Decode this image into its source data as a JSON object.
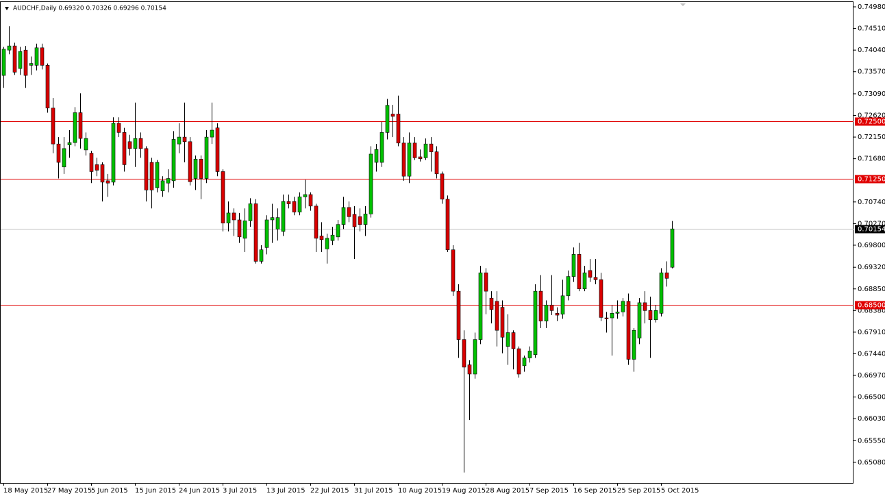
{
  "chart_data": {
    "type": "candlestick",
    "title": "AUDCHF,Daily  0.69320 0.70326 0.69296 0.70154",
    "categories": [
      "18 May 2015",
      null,
      null,
      null,
      null,
      null,
      null,
      null,
      "27 May 2015",
      null,
      null,
      null,
      null,
      null,
      null,
      null,
      "5 Jun 2015",
      null,
      null,
      null,
      null,
      null,
      null,
      null,
      "15 Jun 2015",
      null,
      null,
      null,
      null,
      null,
      null,
      null,
      "24 Jun 2015",
      null,
      null,
      null,
      null,
      null,
      null,
      null,
      "3 Jul 2015",
      null,
      null,
      null,
      null,
      null,
      null,
      null,
      "13 Jul 2015",
      null,
      null,
      null,
      null,
      null,
      null,
      null,
      "22 Jul 2015",
      null,
      null,
      null,
      null,
      null,
      null,
      null,
      "31 Jul 2015",
      null,
      null,
      null,
      null,
      null,
      null,
      null,
      "10 Aug 2015",
      null,
      null,
      null,
      null,
      null,
      null,
      null,
      "19 Aug 2015",
      null,
      null,
      null,
      null,
      null,
      null,
      null,
      "28 Aug 2015",
      null,
      null,
      null,
      null,
      null,
      null,
      null,
      "7 Sep 2015",
      null,
      null,
      null,
      null,
      null,
      null,
      null,
      "16 Sep 2015",
      null,
      null,
      null,
      null,
      null,
      null,
      null,
      "25 Sep 2015",
      null,
      null,
      null,
      null,
      null,
      null,
      null,
      "5 Oct 2015",
      null,
      null
    ],
    "open": [
      0.7349,
      0.7404,
      0.7413,
      0.7364,
      0.7404,
      0.7371,
      0.7371,
      0.7409,
      0.7371,
      0.7278,
      0.72,
      0.715,
      0.7198,
      0.7203,
      0.7268,
      0.7187,
      0.718,
      0.7155,
      0.7155,
      0.712,
      0.7117,
      0.7245,
      0.7225,
      0.7205,
      0.719,
      0.7212,
      0.719,
      0.716,
      0.7105,
      0.7098,
      0.7115,
      0.712,
      0.72,
      0.7215,
      0.7205,
      0.7125,
      0.7167,
      0.7125,
      0.7215,
      0.7235,
      0.714,
      0.7028,
      0.705,
      0.7035,
      0.6995,
      0.7033,
      0.707,
      0.6945,
      0.6975,
      0.7035,
      0.7015,
      0.701,
      0.7075,
      0.7075,
      0.7052,
      0.7085,
      0.709,
      0.7065,
      0.7,
      0.6972,
      0.699,
      0.6998,
      0.7025,
      0.7062,
      0.7047,
      0.7042,
      0.7025,
      0.7048,
      0.716,
      0.716,
      0.7225,
      0.7265,
      0.7265,
      0.7202,
      0.713,
      0.7202,
      0.7172,
      0.717,
      0.72,
      0.7183,
      0.7135,
      0.708,
      0.697,
      0.688,
      0.6775,
      0.672,
      0.67,
      0.6775,
      0.692,
      0.6865,
      0.6858,
      0.6845,
      0.676,
      0.679,
      0.6755,
      0.6718,
      0.6735,
      0.6742,
      0.688,
      0.6815,
      0.685,
      0.6832,
      0.683,
      0.687,
      0.6912,
      0.696,
      0.6885,
      0.6925,
      0.691,
      0.6905,
      0.6822,
      0.6822,
      0.6832,
      0.6835,
      0.6858,
      0.6732,
      0.6778,
      0.6855,
      0.6838,
      0.6818,
      0.6832,
      0.692,
      0.6932
    ],
    "high": [
      0.7411,
      0.7456,
      0.742,
      0.7411,
      0.7413,
      0.739,
      0.7418,
      0.7418,
      0.7375,
      0.73,
      0.7215,
      0.7215,
      0.723,
      0.728,
      0.731,
      0.7225,
      0.7185,
      0.717,
      0.716,
      0.7135,
      0.7258,
      0.7258,
      0.7235,
      0.722,
      0.729,
      0.7225,
      0.7195,
      0.717,
      0.7165,
      0.713,
      0.7145,
      0.7228,
      0.7245,
      0.729,
      0.7215,
      0.7175,
      0.7175,
      0.723,
      0.729,
      0.7245,
      0.7145,
      0.7075,
      0.706,
      0.705,
      0.706,
      0.7082,
      0.708,
      0.698,
      0.7045,
      0.707,
      0.706,
      0.709,
      0.709,
      0.7085,
      0.7095,
      0.7122,
      0.7095,
      0.707,
      0.703,
      0.7005,
      0.702,
      0.7035,
      0.7085,
      0.7075,
      0.7065,
      0.706,
      0.7065,
      0.7195,
      0.72,
      0.7248,
      0.7298,
      0.7285,
      0.7305,
      0.7215,
      0.7225,
      0.7215,
      0.7188,
      0.7212,
      0.7215,
      0.7195,
      0.714,
      0.7088,
      0.698,
      0.6895,
      0.6795,
      0.673,
      0.679,
      0.6935,
      0.693,
      0.688,
      0.688,
      0.686,
      0.683,
      0.6795,
      0.676,
      0.674,
      0.676,
      0.6895,
      0.6915,
      0.686,
      0.6915,
      0.6845,
      0.6905,
      0.6925,
      0.6975,
      0.6985,
      0.6935,
      0.695,
      0.695,
      0.692,
      0.6835,
      0.685,
      0.686,
      0.6865,
      0.6875,
      0.68,
      0.6865,
      0.688,
      0.6868,
      0.685,
      0.693,
      0.6945,
      0.70326
    ],
    "low": [
      0.7322,
      0.7395,
      0.735,
      0.735,
      0.7322,
      0.735,
      0.736,
      0.7362,
      0.7268,
      0.718,
      0.7125,
      0.7135,
      0.717,
      0.7195,
      0.719,
      0.7175,
      0.7115,
      0.713,
      0.7075,
      0.7085,
      0.711,
      0.7215,
      0.714,
      0.7175,
      0.715,
      0.717,
      0.7075,
      0.706,
      0.7095,
      0.7085,
      0.7095,
      0.7105,
      0.718,
      0.716,
      0.711,
      0.71,
      0.708,
      0.7115,
      0.72,
      0.713,
      0.701,
      0.701,
      0.7,
      0.6985,
      0.6965,
      0.702,
      0.694,
      0.694,
      0.696,
      0.6985,
      0.699,
      0.7,
      0.706,
      0.7045,
      0.7045,
      0.706,
      0.7055,
      0.6965,
      0.6965,
      0.694,
      0.698,
      0.699,
      0.7015,
      0.703,
      0.695,
      0.701,
      0.7,
      0.704,
      0.714,
      0.715,
      0.721,
      0.7215,
      0.7195,
      0.712,
      0.7115,
      0.7165,
      0.7162,
      0.7165,
      0.714,
      0.7125,
      0.707,
      0.6965,
      0.687,
      0.6735,
      0.6486,
      0.66,
      0.669,
      0.6765,
      0.683,
      0.681,
      0.676,
      0.6745,
      0.672,
      0.671,
      0.6692,
      0.6705,
      0.6725,
      0.6735,
      0.68,
      0.68,
      0.6828,
      0.6815,
      0.682,
      0.686,
      0.69,
      0.688,
      0.688,
      0.69,
      0.6895,
      0.6815,
      0.679,
      0.674,
      0.682,
      0.6825,
      0.672,
      0.6705,
      0.6765,
      0.681,
      0.6735,
      0.6812,
      0.6825,
      0.689,
      0.69296
    ],
    "close": [
      0.7406,
      0.7413,
      0.7356,
      0.7401,
      0.7349,
      0.7375,
      0.7409,
      0.7371,
      0.7278,
      0.72,
      0.716,
      0.719,
      0.7203,
      0.7268,
      0.7212,
      0.7212,
      0.714,
      0.7143,
      0.7117,
      0.7115,
      0.7245,
      0.7225,
      0.7155,
      0.719,
      0.7212,
      0.719,
      0.71,
      0.71,
      0.716,
      0.712,
      0.7125,
      0.721,
      0.7215,
      0.7205,
      0.7118,
      0.7167,
      0.7125,
      0.7215,
      0.723,
      0.714,
      0.7028,
      0.705,
      0.7035,
      0.6998,
      0.7033,
      0.707,
      0.6945,
      0.697,
      0.7035,
      0.704,
      0.704,
      0.7075,
      0.707,
      0.7052,
      0.7085,
      0.709,
      0.7065,
      0.6995,
      0.6992,
      0.6995,
      0.7002,
      0.7025,
      0.7062,
      0.7042,
      0.702,
      0.7025,
      0.7048,
      0.7178,
      0.7188,
      0.7225,
      0.7284,
      0.726,
      0.7202,
      0.713,
      0.7202,
      0.717,
      0.7168,
      0.72,
      0.7183,
      0.7135,
      0.708,
      0.697,
      0.688,
      0.6775,
      0.6715,
      0.67,
      0.6775,
      0.692,
      0.688,
      0.684,
      0.6795,
      0.678,
      0.679,
      0.6755,
      0.67,
      0.6735,
      0.675,
      0.688,
      0.6815,
      0.685,
      0.6838,
      0.6828,
      0.687,
      0.6912,
      0.696,
      0.6885,
      0.692,
      0.691,
      0.6905,
      0.6823,
      0.682,
      0.6832,
      0.6835,
      0.6858,
      0.6732,
      0.6795,
      0.6855,
      0.6838,
      0.6818,
      0.6838,
      0.692,
      0.6908,
      0.70154
    ],
    "up_color": "#00c000",
    "down_color": "#d80000",
    "wick_color": "#000000",
    "ylim": [
      0.64633,
      0.75129
    ],
    "yticks": [
      {
        "value": 0.7498,
        "label": "0.74980"
      },
      {
        "value": 0.7451,
        "label": "0.74510"
      },
      {
        "value": 0.7404,
        "label": "0.74040"
      },
      {
        "value": 0.7357,
        "label": "0.73570"
      },
      {
        "value": 0.7309,
        "label": "0.73090"
      },
      {
        "value": 0.7262,
        "label": "0.72620"
      },
      {
        "value": 0.7215,
        "label": "0.72150"
      },
      {
        "value": 0.7168,
        "label": "0.71680"
      },
      {
        "value": 0.7074,
        "label": "0.70740"
      },
      {
        "value": 0.7027,
        "label": "0.70270"
      },
      {
        "value": 0.698,
        "label": "0.69800"
      },
      {
        "value": 0.6932,
        "label": "0.69320"
      },
      {
        "value": 0.6885,
        "label": "0.68850"
      },
      {
        "value": 0.6838,
        "label": "0.68380"
      },
      {
        "value": 0.6791,
        "label": "0.67910"
      },
      {
        "value": 0.6744,
        "label": "0.67440"
      },
      {
        "value": 0.6697,
        "label": "0.66970"
      },
      {
        "value": 0.665,
        "label": "0.66500"
      },
      {
        "value": 0.6603,
        "label": "0.66030"
      },
      {
        "value": 0.6555,
        "label": "0.65550"
      },
      {
        "value": 0.6508,
        "label": "0.65080"
      }
    ],
    "hlines": [
      {
        "value": 0.725,
        "label": "0.72500",
        "color": "#e00000"
      },
      {
        "value": 0.7125,
        "label": "0.71250",
        "color": "#e00000"
      },
      {
        "value": 0.685,
        "label": "0.68500",
        "color": "#e00000"
      },
      {
        "value": 0.70154,
        "label": "0.70154",
        "color": "#c0c0c0"
      }
    ]
  }
}
